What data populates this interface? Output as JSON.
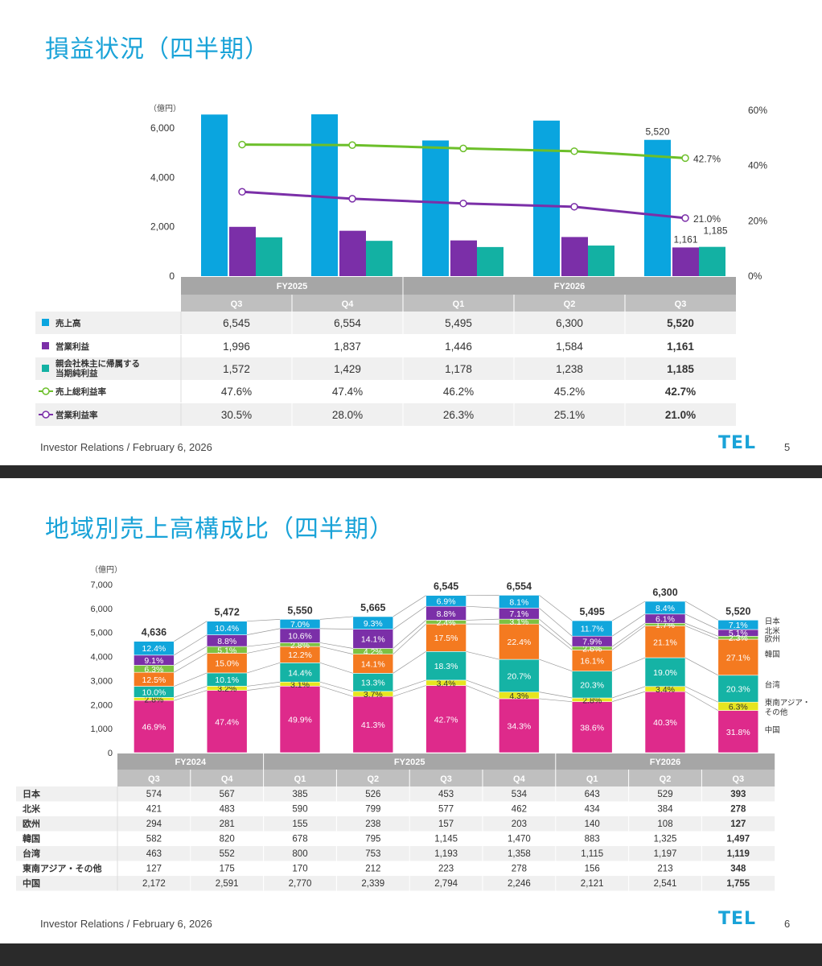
{
  "slide1": {
    "title": "損益状況（四半期）",
    "footer": "Investor Relations / February 6, 2026",
    "logo": "TEL",
    "page_number": "5"
  },
  "slide2": {
    "title": "地域別売上高構成比（四半期）",
    "footer": "Investor Relations / February 6, 2026",
    "logo": "TEL",
    "page_number": "6"
  },
  "chart_data": [
    {
      "type": "bar",
      "unit_label": "（億円）",
      "ylim": [
        0,
        6000
      ],
      "yticks": [
        "0",
        "2,000",
        "4,000",
        "6,000"
      ],
      "y2lim": [
        0,
        60
      ],
      "y2ticks": [
        "0%",
        "20%",
        "40%",
        "60%"
      ],
      "fiscal_years": [
        {
          "label": "FY2025",
          "span": 2
        },
        {
          "label": "FY2026",
          "span": 3
        }
      ],
      "categories": [
        "Q3",
        "Q4",
        "Q1",
        "Q2",
        "Q3"
      ],
      "series": [
        {
          "name": "売上高",
          "kind": "bar",
          "color": "#0aa5df",
          "values": [
            6545,
            6554,
            5495,
            6300,
            5520
          ],
          "display": [
            "6,545",
            "6,554",
            "5,495",
            "6,300",
            "5,520"
          ],
          "legend_marker": "square"
        },
        {
          "name": "営業利益",
          "kind": "bar",
          "color": "#7b2fa8",
          "values": [
            1996,
            1837,
            1446,
            1584,
            1161
          ],
          "display": [
            "1,996",
            "1,837",
            "1,446",
            "1,584",
            "1,161"
          ],
          "legend_marker": "square"
        },
        {
          "name": "親会社株主に帰属する\n当期純利益",
          "kind": "bar",
          "color": "#13b1a3",
          "values": [
            1572,
            1429,
            1178,
            1238,
            1185
          ],
          "display": [
            "1,572",
            "1,429",
            "1,178",
            "1,238",
            "1,185"
          ],
          "legend_marker": "square"
        },
        {
          "name": "売上総利益率",
          "kind": "line",
          "color": "#6cbf2a",
          "values": [
            47.6,
            47.4,
            46.2,
            45.2,
            42.7
          ],
          "display": [
            "47.6%",
            "47.4%",
            "46.2%",
            "45.2%",
            "42.7%"
          ],
          "legend_marker": "line-circle"
        },
        {
          "name": "営業利益率",
          "kind": "line",
          "color": "#7b2fa8",
          "values": [
            30.5,
            28.0,
            26.3,
            25.1,
            21.0
          ],
          "display": [
            "30.5%",
            "28.0%",
            "26.3%",
            "25.1%",
            "21.0%"
          ],
          "legend_marker": "line-circle"
        }
      ],
      "data_labels": {
        "sales_last": "5,520",
        "op_last": "1,161",
        "net_last": "1,185",
        "gm_last": "42.7%",
        "om_last": "21.0%"
      }
    },
    {
      "type": "bar",
      "stacked": true,
      "unit_label": "（億円）",
      "ylim": [
        0,
        7000
      ],
      "yticks": [
        "0",
        "1,000",
        "2,000",
        "3,000",
        "4,000",
        "5,000",
        "6,000",
        "7,000"
      ],
      "fiscal_years": [
        {
          "label": "FY2024",
          "span": 2
        },
        {
          "label": "FY2025",
          "span": 4
        },
        {
          "label": "FY2026",
          "span": 3
        }
      ],
      "categories": [
        "Q3",
        "Q4",
        "Q1",
        "Q2",
        "Q3",
        "Q4",
        "Q1",
        "Q2",
        "Q3"
      ],
      "totals": [
        4636,
        5472,
        5550,
        5665,
        6545,
        6554,
        5495,
        6300,
        5520
      ],
      "totals_display": [
        "4,636",
        "5,472",
        "5,550",
        "5,665",
        "6,545",
        "6,554",
        "5,495",
        "6,300",
        "5,520"
      ],
      "series": [
        {
          "name": "中国",
          "color": "#de2a8b",
          "values": [
            2172,
            2591,
            2770,
            2339,
            2794,
            2246,
            2121,
            2541,
            1755
          ],
          "display": [
            "2,172",
            "2,591",
            "2,770",
            "2,339",
            "2,794",
            "2,246",
            "2,121",
            "2,541",
            "1,755"
          ],
          "pct": [
            "46.9%",
            "47.4%",
            "49.9%",
            "41.3%",
            "42.7%",
            "34.3%",
            "38.6%",
            "40.3%",
            "31.8%"
          ],
          "label_color": "#ffffff"
        },
        {
          "name": "東南アジア・\nその他",
          "table_name": "東南アジア・その他",
          "color": "#e6e51f",
          "values": [
            127,
            175,
            170,
            212,
            223,
            278,
            156,
            213,
            348
          ],
          "display": [
            "127",
            "175",
            "170",
            "212",
            "223",
            "278",
            "156",
            "213",
            "348"
          ],
          "pct": [
            "2.8%",
            "3.2%",
            "3.1%",
            "3.7%",
            "3.4%",
            "4.3%",
            "2.8%",
            "3.4%",
            "6.3%"
          ],
          "label_color": "#333333"
        },
        {
          "name": "台湾",
          "color": "#15b3a5",
          "values": [
            463,
            552,
            800,
            753,
            1193,
            1358,
            1115,
            1197,
            1119
          ],
          "display": [
            "463",
            "552",
            "800",
            "753",
            "1,193",
            "1,358",
            "1,115",
            "1,197",
            "1,119"
          ],
          "pct": [
            "10.0%",
            "10.1%",
            "14.4%",
            "13.3%",
            "18.3%",
            "20.7%",
            "20.3%",
            "19.0%",
            "20.3%"
          ],
          "label_color": "#ffffff"
        },
        {
          "name": "韓国",
          "color": "#f47a20",
          "values": [
            582,
            820,
            678,
            795,
            1145,
            1470,
            883,
            1325,
            1497
          ],
          "display": [
            "582",
            "820",
            "678",
            "795",
            "1,145",
            "1,470",
            "883",
            "1,325",
            "1,497"
          ],
          "pct": [
            "12.5%",
            "15.0%",
            "12.2%",
            "14.1%",
            "17.5%",
            "22.4%",
            "16.1%",
            "21.1%",
            "27.1%"
          ],
          "label_color": "#ffffff"
        },
        {
          "name": "欧州",
          "color": "#7dc242",
          "values": [
            294,
            281,
            155,
            238,
            157,
            203,
            140,
            108,
            127
          ],
          "display": [
            "294",
            "281",
            "155",
            "238",
            "157",
            "203",
            "140",
            "108",
            "127"
          ],
          "pct": [
            "6.3%",
            "5.1%",
            "2.8%",
            "4.2%",
            "2.4%",
            "3.1%",
            "2.6%",
            "1.7%",
            "2.3%"
          ],
          "label_color": "#ffffff"
        },
        {
          "name": "北米",
          "color": "#7b2fa8",
          "values": [
            421,
            483,
            590,
            799,
            577,
            462,
            434,
            384,
            278
          ],
          "display": [
            "421",
            "483",
            "590",
            "799",
            "577",
            "462",
            "434",
            "384",
            "278"
          ],
          "pct": [
            "9.1%",
            "8.8%",
            "10.6%",
            "14.1%",
            "8.8%",
            "7.1%",
            "7.9%",
            "6.1%",
            "5.1%"
          ],
          "label_color": "#ffffff"
        },
        {
          "name": "日本",
          "color": "#11a6dc",
          "values": [
            574,
            567,
            385,
            526,
            453,
            534,
            643,
            529,
            393
          ],
          "display": [
            "574",
            "567",
            "385",
            "526",
            "453",
            "534",
            "643",
            "529",
            "393"
          ],
          "pct": [
            "12.4%",
            "10.4%",
            "7.0%",
            "9.3%",
            "6.9%",
            "8.1%",
            "11.7%",
            "8.4%",
            "7.1%"
          ],
          "label_color": "#ffffff"
        }
      ],
      "table_order": [
        "日本",
        "北米",
        "欧州",
        "韓国",
        "台湾",
        "東南アジア・その他",
        "中国"
      ]
    }
  ]
}
